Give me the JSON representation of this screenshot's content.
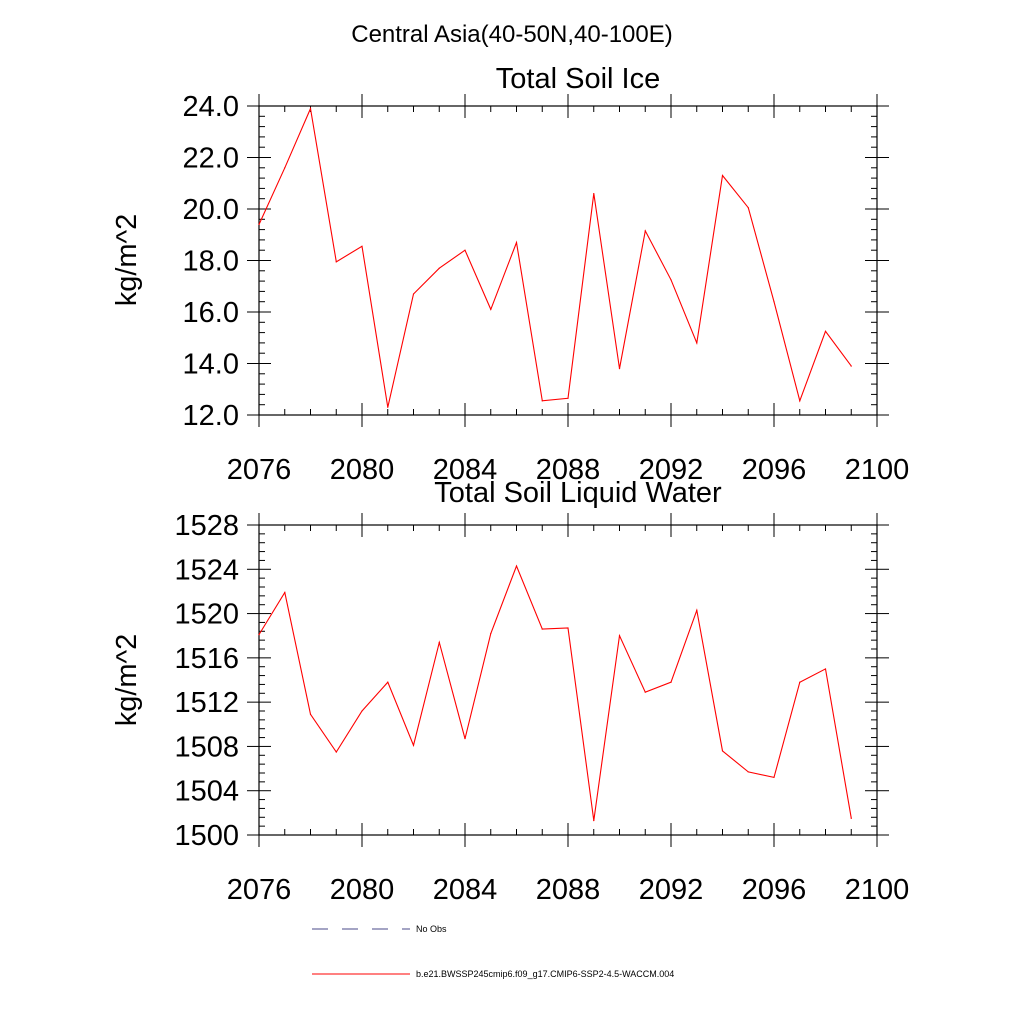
{
  "figure_title": "Central Asia(40-50N,40-100E)",
  "chart_data": [
    {
      "type": "line",
      "title": "Total Soil Ice",
      "xlabel": "",
      "ylabel": "kg/m^2",
      "xlim": [
        2076,
        2100
      ],
      "ylim": [
        12.0,
        24.0
      ],
      "xticks": [
        2076,
        2080,
        2084,
        2088,
        2092,
        2096,
        2100
      ],
      "xtick_labels": [
        "2076",
        "2080",
        "2084",
        "2088",
        "2092",
        "2096",
        "2100"
      ],
      "yticks": [
        12.0,
        14.0,
        16.0,
        18.0,
        20.0,
        22.0,
        24.0
      ],
      "ytick_labels": [
        "12.0",
        "14.0",
        "16.0",
        "18.0",
        "20.0",
        "22.0",
        "24.0"
      ],
      "grid": false,
      "series": [
        {
          "name": "b.e21.BWSSP245cmip6.f09_g17.CMIP6-SSP2-4.5-WACCM.004",
          "color": "#ff0000",
          "x": [
            2076,
            2077,
            2078,
            2079,
            2080,
            2081,
            2082,
            2083,
            2084,
            2085,
            2086,
            2087,
            2088,
            2089,
            2090,
            2091,
            2092,
            2093,
            2094,
            2095,
            2096,
            2097,
            2098,
            2099
          ],
          "values": [
            19.4,
            21.6,
            23.9,
            17.95,
            18.55,
            12.3,
            16.7,
            17.7,
            18.4,
            16.1,
            18.7,
            12.55,
            12.65,
            20.6,
            13.8,
            19.15,
            17.25,
            14.8,
            21.3,
            20.05,
            16.4,
            12.55,
            15.25,
            13.9
          ]
        }
      ]
    },
    {
      "type": "line",
      "title": "Total Soil Liquid Water",
      "xlabel": "",
      "ylabel": "kg/m^2",
      "xlim": [
        2076,
        2100
      ],
      "ylim": [
        1500,
        1528
      ],
      "xticks": [
        2076,
        2080,
        2084,
        2088,
        2092,
        2096,
        2100
      ],
      "xtick_labels": [
        "2076",
        "2080",
        "2084",
        "2088",
        "2092",
        "2096",
        "2100"
      ],
      "yticks": [
        1500,
        1504,
        1508,
        1512,
        1516,
        1520,
        1524,
        1528
      ],
      "ytick_labels": [
        "1500",
        "1504",
        "1508",
        "1512",
        "1516",
        "1520",
        "1524",
        "1528"
      ],
      "grid": false,
      "series": [
        {
          "name": "b.e21.BWSSP245cmip6.f09_g17.CMIP6-SSP2-4.5-WACCM.004",
          "color": "#ff0000",
          "x": [
            2076,
            2077,
            2078,
            2079,
            2080,
            2081,
            2082,
            2083,
            2084,
            2085,
            2086,
            2087,
            2088,
            2089,
            2090,
            2091,
            2092,
            2093,
            2094,
            2095,
            2096,
            2097,
            2098,
            2099
          ],
          "values": [
            1518.1,
            1521.9,
            1510.9,
            1507.5,
            1511.2,
            1513.8,
            1508.1,
            1517.4,
            1508.7,
            1518.2,
            1524.3,
            1518.6,
            1518.7,
            1501.3,
            1518.0,
            1512.9,
            1513.8,
            1520.3,
            1507.6,
            1505.7,
            1505.2,
            1513.8,
            1515.0,
            1501.5
          ]
        }
      ]
    }
  ],
  "legend": {
    "entries": [
      {
        "label": "No Obs",
        "color": "#4a4a8a",
        "style": "dashed"
      },
      {
        "label": "b.e21.BWSSP245cmip6.f09_g17.CMIP6-SSP2-4.5-WACCM.004",
        "color": "#ff0000",
        "style": "solid"
      }
    ]
  }
}
